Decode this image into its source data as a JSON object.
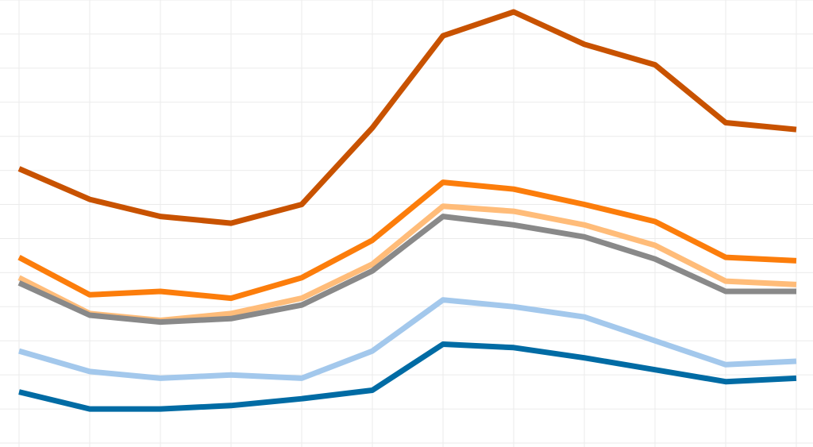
{
  "chart_data": {
    "type": "line",
    "x": [
      0,
      1,
      2,
      3,
      4,
      5,
      6,
      7,
      8,
      9,
      10,
      11
    ],
    "xlim": [
      0,
      11
    ],
    "ylim": [
      0,
      26
    ],
    "grid": true,
    "legend": "none",
    "series": [
      {
        "color": "#c85200",
        "values": [
          16.1,
          14.3,
          13.3,
          12.9,
          14.0,
          18.5,
          23.9,
          25.3,
          23.4,
          22.2,
          18.8,
          18.4
        ]
      },
      {
        "color": "#fc7d0b",
        "values": [
          10.9,
          8.7,
          8.9,
          8.5,
          9.7,
          11.9,
          15.3,
          14.9,
          14.0,
          13.0,
          10.9,
          10.7
        ]
      },
      {
        "color": "#ffbc79",
        "values": [
          9.7,
          7.6,
          7.2,
          7.6,
          8.5,
          10.5,
          13.9,
          13.6,
          12.8,
          11.6,
          9.5,
          9.3
        ]
      },
      {
        "color": "#898989",
        "values": [
          9.4,
          7.5,
          7.1,
          7.3,
          8.1,
          10.1,
          13.3,
          12.8,
          12.1,
          10.8,
          8.9,
          8.9
        ]
      },
      {
        "color": "#a3c8ec",
        "values": [
          5.4,
          4.2,
          3.8,
          4.0,
          3.8,
          5.4,
          8.4,
          8.0,
          7.4,
          6.0,
          4.6,
          4.8
        ]
      },
      {
        "color": "#006ba4",
        "values": [
          3.0,
          2.0,
          2.0,
          2.2,
          2.6,
          3.1,
          5.8,
          5.6,
          5.0,
          4.3,
          3.6,
          3.8
        ]
      }
    ]
  }
}
